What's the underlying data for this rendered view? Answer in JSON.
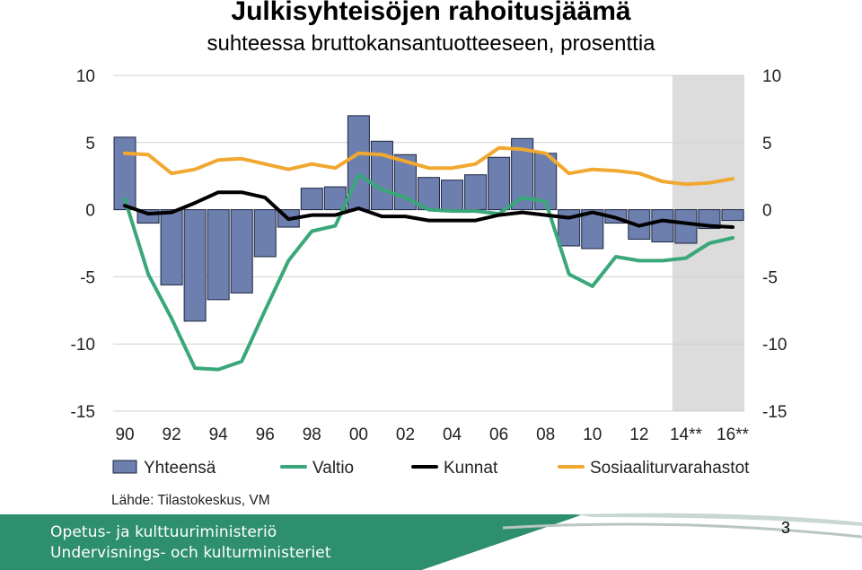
{
  "slide": {
    "title": "Julkisyhteisöjen rahoitusjäämä",
    "subtitle": "suhteessa bruttokansantuotteeseen, prosenttia",
    "source": "Lähde: Tilastokeskus, VM",
    "footer_line_1": "Opetus- ja kulttuuriministeriö",
    "footer_line_2": "Undervisnings- och kulturministeriet",
    "page_number": "3"
  },
  "colors": {
    "bar_fill": "#6d7faf",
    "bar_stroke": "#1c2540",
    "valtio": "#3aa77a",
    "kunnat": "#000000",
    "sosiaali": "#f0a830",
    "forecast_shade": "#dcdcdc",
    "grid": "#d0d0d0",
    "footer_band": "#2e8f6e"
  },
  "chart_data": {
    "type": "bar",
    "x": [
      1990,
      1991,
      1992,
      1993,
      1994,
      1995,
      1996,
      1997,
      1998,
      1999,
      2000,
      2001,
      2002,
      2003,
      2004,
      2005,
      2006,
      2007,
      2008,
      2009,
      2010,
      2011,
      2012,
      2013,
      2014,
      2015,
      2016
    ],
    "xtick_labels": [
      "90",
      "92",
      "94",
      "96",
      "98",
      "00",
      "02",
      "04",
      "06",
      "08",
      "10",
      "12",
      "14**",
      "16**"
    ],
    "xtick_years": [
      1990,
      1992,
      1994,
      1996,
      1998,
      2000,
      2002,
      2004,
      2006,
      2008,
      2010,
      2012,
      2014,
      2016
    ],
    "ylim": [
      -15,
      10
    ],
    "yticks": [
      10,
      5,
      0,
      -5,
      -10,
      -15
    ],
    "ytick_labels": [
      "10",
      "5",
      "0",
      "-5",
      "-10",
      "-15"
    ],
    "grid": true,
    "forecast_from": 2014,
    "legend_position": "bottom",
    "series": [
      {
        "name": "Yhteensä",
        "kind": "bar",
        "values": [
          5.4,
          -1.0,
          -5.6,
          -8.3,
          -6.7,
          -6.2,
          -3.5,
          -1.3,
          1.6,
          1.7,
          7.0,
          5.1,
          4.1,
          2.4,
          2.2,
          2.6,
          3.9,
          5.3,
          4.2,
          -2.7,
          -2.9,
          -1.0,
          -2.2,
          -2.4,
          -2.5,
          -1.4,
          -0.8
        ]
      },
      {
        "name": "Valtio",
        "kind": "line",
        "values": [
          0.8,
          -4.8,
          -8.1,
          -11.8,
          -11.9,
          -11.3,
          -7.5,
          -3.8,
          -1.6,
          -1.2,
          2.6,
          1.5,
          0.9,
          0.0,
          -0.1,
          -0.1,
          -0.3,
          0.9,
          0.6,
          -4.8,
          -5.7,
          -3.5,
          -3.8,
          -3.8,
          -3.6,
          -2.5,
          -2.1
        ]
      },
      {
        "name": "Kunnat",
        "kind": "line",
        "values": [
          0.3,
          -0.3,
          -0.2,
          0.5,
          1.3,
          1.3,
          0.9,
          -0.7,
          -0.4,
          -0.4,
          0.1,
          -0.5,
          -0.5,
          -0.8,
          -0.8,
          -0.8,
          -0.4,
          -0.2,
          -0.4,
          -0.6,
          -0.2,
          -0.6,
          -1.2,
          -0.8,
          -1.0,
          -1.2,
          -1.3
        ]
      },
      {
        "name": "Sosiaaliturvarahastot",
        "kind": "line",
        "values": [
          4.2,
          4.1,
          2.7,
          3.0,
          3.7,
          3.8,
          3.4,
          3.0,
          3.4,
          3.1,
          4.2,
          4.1,
          3.6,
          3.1,
          3.1,
          3.4,
          4.6,
          4.5,
          4.2,
          2.7,
          3.0,
          2.9,
          2.7,
          2.1,
          1.9,
          2.0,
          2.3
        ]
      }
    ]
  }
}
